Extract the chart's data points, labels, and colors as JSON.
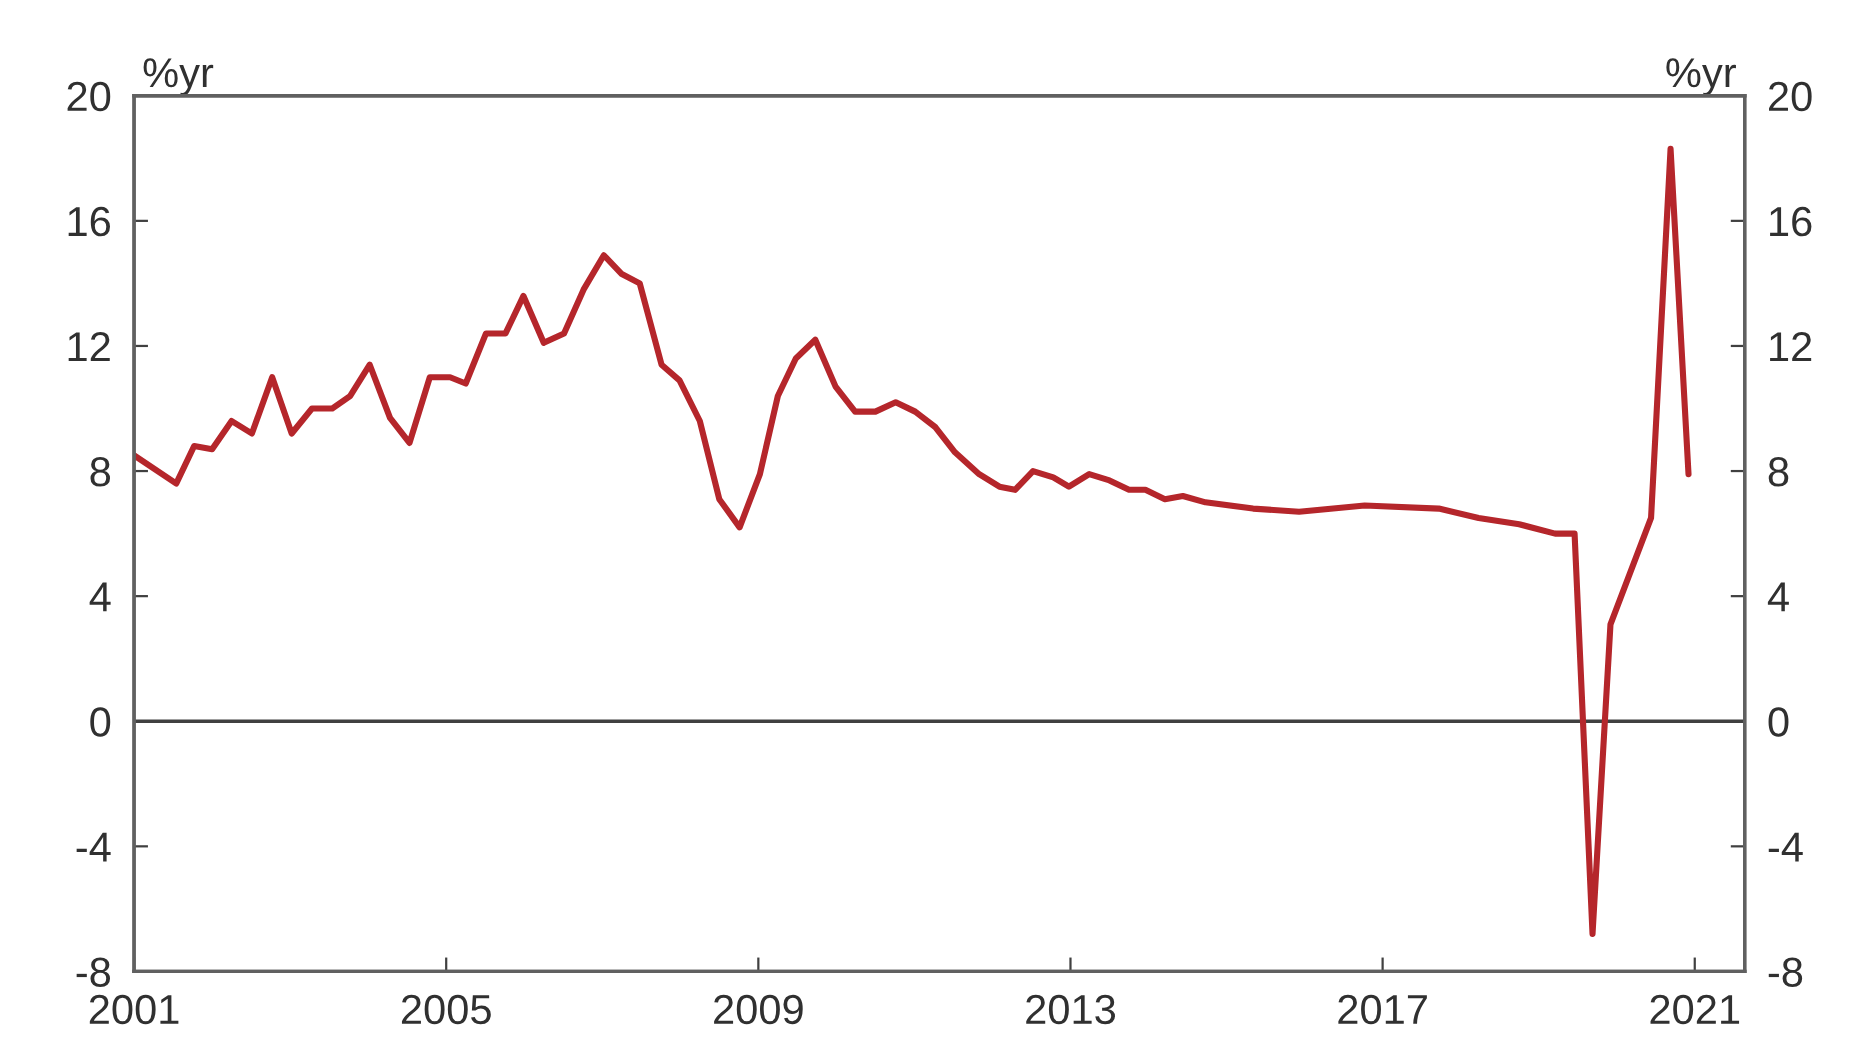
{
  "chart_data": {
    "type": "line",
    "ylabel": "%yr",
    "y2label": "%yr",
    "x": [
      2001.0,
      2001.54,
      2001.77,
      2002.0,
      2002.25,
      2002.51,
      2002.77,
      2003.02,
      2003.28,
      2003.54,
      2003.77,
      2004.02,
      2004.28,
      2004.53,
      2004.79,
      2005.05,
      2005.25,
      2005.51,
      2005.76,
      2005.99,
      2006.25,
      2006.51,
      2006.76,
      2007.02,
      2007.25,
      2007.48,
      2007.76,
      2007.99,
      2008.25,
      2008.5,
      2008.76,
      2009.02,
      2009.25,
      2009.48,
      2009.73,
      2009.99,
      2010.24,
      2010.5,
      2010.76,
      2011.01,
      2011.27,
      2011.52,
      2011.83,
      2012.09,
      2012.29,
      2012.52,
      2012.78,
      2012.98,
      2013.24,
      2013.5,
      2013.75,
      2013.96,
      2014.21,
      2014.44,
      2014.73,
      2015.34,
      2015.93,
      2016.77,
      2017.72,
      2018.23,
      2018.75,
      2019.21,
      2019.46,
      2019.69,
      2019.92,
      2020.44,
      2020.69,
      2020.92
    ],
    "series": [
      {
        "color": "#b5262b",
        "values": [
          8.5,
          7.6,
          8.8,
          8.7,
          9.6,
          9.2,
          11.0,
          9.2,
          10.0,
          10.0,
          10.4,
          11.4,
          9.7,
          8.9,
          11.0,
          11.0,
          10.8,
          12.4,
          12.4,
          13.6,
          12.1,
          12.4,
          13.8,
          14.9,
          14.3,
          14.0,
          11.4,
          10.9,
          9.6,
          7.1,
          6.2,
          7.9,
          10.4,
          11.6,
          12.2,
          10.7,
          9.9,
          9.9,
          10.2,
          9.9,
          9.4,
          8.6,
          7.9,
          7.5,
          7.4,
          8.0,
          7.8,
          7.5,
          7.9,
          7.7,
          7.4,
          7.4,
          7.1,
          7.2,
          7.0,
          6.8,
          6.7,
          6.9,
          6.8,
          6.5,
          6.3,
          6.0,
          6.0,
          -6.8,
          3.1,
          6.5,
          18.3,
          7.9
        ]
      }
    ],
    "xlim": [
      2001,
      2021.64
    ],
    "xticks": [
      2001,
      2005,
      2009,
      2013,
      2017,
      2021
    ],
    "ylim": [
      -8,
      20
    ],
    "yticks": [
      -8,
      -4,
      0,
      4,
      8,
      12,
      16,
      20
    ],
    "y2lim": [
      -8,
      20
    ],
    "y2ticks": [
      -8,
      -4,
      0,
      4,
      8,
      12,
      16,
      20
    ],
    "ref_lines": [
      {
        "axis": "y",
        "value": 0,
        "color": "#404040"
      }
    ],
    "grid": false,
    "legend": false
  }
}
